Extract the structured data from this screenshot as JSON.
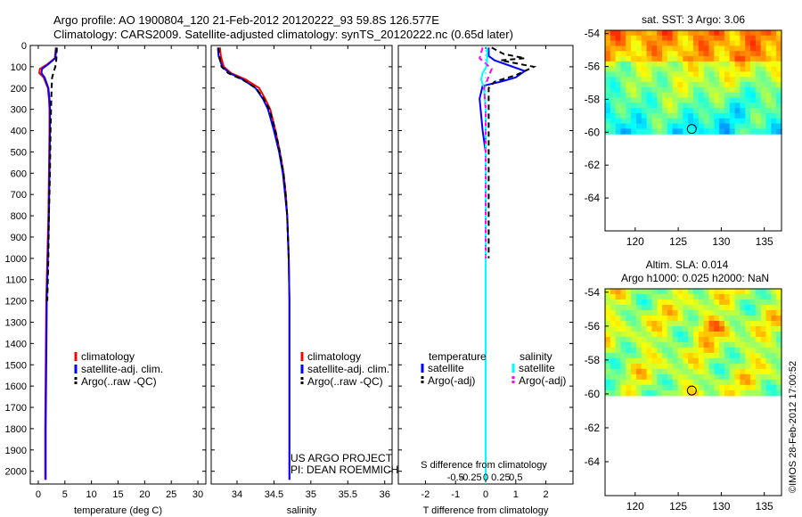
{
  "title_lines": [
    "Argo profile: AO 1900804_120 21-Feb-2012 20120222_93 59.8S 126.577E",
    "Climatology: CARS2009. Satellite-adjusted climatology: synTS_20120222.nc (0.65d later)"
  ],
  "watermark": "©IMOS 28-Feb-2012 17:00:52",
  "project_credit": [
    "US ARGO PROJECT",
    "PI: DEAN ROEMMICH"
  ],
  "colors": {
    "climatology": "#ff0000",
    "satellite": "#0000ff",
    "argo": "#000000",
    "salinity_satellite": "#00ffff",
    "salinity_argo": "#ff00ff"
  },
  "chart_data": [
    {
      "id": "temperature",
      "type": "line",
      "xlabel": "temperature (deg C)",
      "ylabel": "",
      "xlim": [
        -1.5,
        31.5
      ],
      "ylim": [
        2060,
        0
      ],
      "xticks": [
        0,
        5,
        10,
        15,
        20,
        25,
        30
      ],
      "xtick_labels": [
        "0",
        "5",
        "10",
        "15",
        "20",
        "25",
        "30"
      ],
      "yticks": [
        0,
        100,
        200,
        300,
        400,
        500,
        600,
        700,
        800,
        900,
        1000,
        1100,
        1200,
        1300,
        1400,
        1500,
        1600,
        1700,
        1800,
        1900,
        2000
      ],
      "ytick_labels": [
        "0",
        "100",
        "200",
        "300",
        "400",
        "500",
        "600",
        "700",
        "800",
        "900",
        "1000",
        "1100",
        "1200",
        "1300",
        "1400",
        "1500",
        "1600",
        "1700",
        "1800",
        "1900",
        "2000"
      ],
      "legend": [
        "climatology",
        "satellite-adj. clim.",
        "Argo(..raw -QC)"
      ],
      "legend_position": "lower-right",
      "series": [
        {
          "name": "climatology",
          "color": "#ff0000",
          "dash": false,
          "x": [
            3.3,
            3.1,
            1.6,
            0.3,
            0.2,
            1.0,
            1.8,
            2.0,
            2.1,
            2.1,
            2.0,
            1.9,
            1.7,
            1.5,
            1.4,
            1.3,
            1.3
          ],
          "y": [
            10,
            60,
            90,
            110,
            130,
            150,
            200,
            250,
            300,
            400,
            600,
            800,
            1000,
            1200,
            1500,
            1800,
            2040
          ]
        },
        {
          "name": "satellite-adj. clim.",
          "color": "#0000ff",
          "dash": false,
          "x": [
            3.4,
            3.2,
            1.8,
            0.7,
            0.6,
            1.2,
            1.9,
            2.1,
            2.2,
            2.2,
            2.1,
            2.0,
            1.8,
            1.6,
            1.5,
            1.4,
            1.4
          ],
          "y": [
            10,
            60,
            90,
            110,
            130,
            150,
            200,
            250,
            300,
            400,
            600,
            800,
            1000,
            1200,
            1500,
            1800,
            2040
          ]
        },
        {
          "name": "Argo(..raw -QC)",
          "color": "#000000",
          "dash": true,
          "x": [
            3.5,
            3.4,
            3.3,
            2.6,
            2.5,
            2.4,
            2.3,
            2.2,
            2.0,
            1.9,
            1.7
          ],
          "y": [
            10,
            60,
            90,
            150,
            200,
            300,
            400,
            600,
            800,
            1000,
            1200
          ]
        }
      ]
    },
    {
      "id": "salinity",
      "type": "line",
      "xlabel": "salinity",
      "ylabel": "",
      "xlim": [
        33.65,
        36.1
      ],
      "ylim": [
        2060,
        0
      ],
      "xticks": [
        34,
        34.5,
        35,
        35.5,
        36
      ],
      "xtick_labels": [
        "34",
        "34.5",
        "35",
        "35.5",
        "36"
      ],
      "legend": [
        "climatology",
        "satellite-adj. clim.",
        "Argo(..raw -QC)"
      ],
      "legend_position": "lower-right",
      "series": [
        {
          "name": "climatology",
          "color": "#ff0000",
          "dash": false,
          "x": [
            33.77,
            33.78,
            33.82,
            33.92,
            34.12,
            34.3,
            34.38,
            34.45,
            34.52,
            34.58,
            34.63,
            34.66,
            34.68,
            34.7,
            34.71,
            34.71,
            34.71
          ],
          "y": [
            10,
            50,
            100,
            130,
            160,
            200,
            250,
            300,
            400,
            500,
            600,
            700,
            800,
            1000,
            1200,
            1600,
            2040
          ]
        },
        {
          "name": "satellite-adj. clim.",
          "color": "#0000ff",
          "dash": false,
          "x": [
            33.74,
            33.75,
            33.8,
            33.9,
            34.08,
            34.25,
            34.35,
            34.42,
            34.5,
            34.57,
            34.62,
            34.65,
            34.68,
            34.7,
            34.71,
            34.71,
            34.71
          ],
          "y": [
            10,
            50,
            100,
            130,
            160,
            200,
            250,
            300,
            400,
            500,
            600,
            700,
            800,
            1000,
            1200,
            1600,
            2040
          ]
        },
        {
          "name": "Argo(..raw -QC)",
          "color": "#000000",
          "dash": true,
          "x": [
            33.75,
            33.76,
            33.79,
            33.88,
            34.07,
            34.26,
            34.36,
            34.44,
            34.52,
            34.58,
            34.63,
            34.66,
            34.68,
            34.7
          ],
          "y": [
            10,
            50,
            100,
            130,
            160,
            200,
            250,
            300,
            400,
            500,
            600,
            700,
            800,
            1000
          ]
        }
      ]
    },
    {
      "id": "differences",
      "type": "line",
      "xlabel": "T difference from climatology",
      "top_xlabel": "S difference from climatology",
      "ylabel": "",
      "xlim": [
        -2.9,
        2.9
      ],
      "ylim": [
        2060,
        0
      ],
      "xticks": [
        -2,
        -1,
        0,
        1,
        2
      ],
      "xtick_labels": [
        "-2",
        "-1",
        "0",
        "1",
        "2"
      ],
      "sxticks": [
        -1,
        -0.5,
        0,
        0.5,
        1
      ],
      "sxtick_labels": [
        "-0.5",
        "-0.25",
        "0",
        "0.25",
        "0.5"
      ],
      "legend_headers": [
        "temperature",
        "salinity"
      ],
      "legend": [
        "satellite",
        "Argo(-adj)",
        "satellite",
        "Argo(-adj)"
      ],
      "legend_position": "lower-right",
      "series": [
        {
          "name": "temperature satellite",
          "color": "#0000ff",
          "dash": false,
          "x": [
            0.1,
            0.1,
            0.3,
            0.7,
            1.3,
            1.0,
            0.5,
            -0.1,
            -0.2,
            -0.1,
            0.0,
            0.0,
            0.0,
            0.0,
            0.0
          ],
          "y": [
            10,
            50,
            70,
            90,
            120,
            150,
            170,
            190,
            250,
            400,
            500,
            700,
            1000,
            1500,
            2040
          ]
        },
        {
          "name": "temperature Argo(-adj)",
          "color": "#000000",
          "dash": true,
          "x": [
            0.2,
            0.6,
            1.3,
            0.5,
            1.6,
            1.0,
            0.3,
            0.1,
            0.1,
            0.1,
            0.1
          ],
          "y": [
            10,
            40,
            60,
            70,
            100,
            140,
            170,
            200,
            300,
            600,
            1000
          ]
        },
        {
          "name": "salinity satellite",
          "color": "#00ffff",
          "dash": false,
          "x": [
            0.05,
            0.05,
            0.02,
            -0.1,
            -0.15,
            -0.05,
            0.0,
            0.0,
            0.0,
            0.0
          ],
          "y": [
            10,
            60,
            100,
            130,
            160,
            200,
            300,
            600,
            1200,
            2040
          ]
        },
        {
          "name": "salinity Argo(-adj)",
          "color": "#ff00ff",
          "dash": true,
          "x": [
            -0.1,
            -0.2,
            0.2,
            -0.05,
            0.0,
            0.0,
            0.0,
            0.0
          ],
          "y": [
            10,
            60,
            110,
            200,
            300,
            600,
            800,
            1000
          ]
        }
      ]
    },
    {
      "id": "sst_map",
      "type": "heatmap",
      "title": "sat. SST: 3  Argo: 3.06",
      "xlim": [
        116.5,
        137
      ],
      "ylim": [
        -66,
        -53.8
      ],
      "data_ylim": [
        -60.1,
        -53.8
      ],
      "xticks": [
        120,
        125,
        130,
        135
      ],
      "xtick_labels": [
        "120",
        "125",
        "130",
        "135"
      ],
      "yticks": [
        -54,
        -56,
        -58,
        -60,
        -62,
        -64
      ],
      "ytick_labels": [
        "-54",
        "-56",
        "-58",
        "-60",
        "-62",
        "-64"
      ],
      "marker": {
        "lon": 126.577,
        "lat": -59.8
      },
      "colormap": "jet",
      "clim": [
        0,
        6
      ]
    },
    {
      "id": "sla_map",
      "type": "heatmap",
      "title": "Altim. SLA: 0.014",
      "subtitle": "Argo h1000: 0.025  h2000: NaN",
      "xlim": [
        116.5,
        137
      ],
      "ylim": [
        -66,
        -53.8
      ],
      "data_ylim": [
        -60.1,
        -53.8
      ],
      "xticks": [
        120,
        125,
        130,
        135
      ],
      "xtick_labels": [
        "120",
        "125",
        "130",
        "135"
      ],
      "yticks": [
        -54,
        -56,
        -58,
        -60,
        -62,
        -64
      ],
      "ytick_labels": [
        "-54",
        "-56",
        "-58",
        "-60",
        "-62",
        "-64"
      ],
      "marker": {
        "lon": 126.577,
        "lat": -59.8
      },
      "colormap": "jet",
      "clim": [
        -0.3,
        0.3
      ]
    }
  ]
}
